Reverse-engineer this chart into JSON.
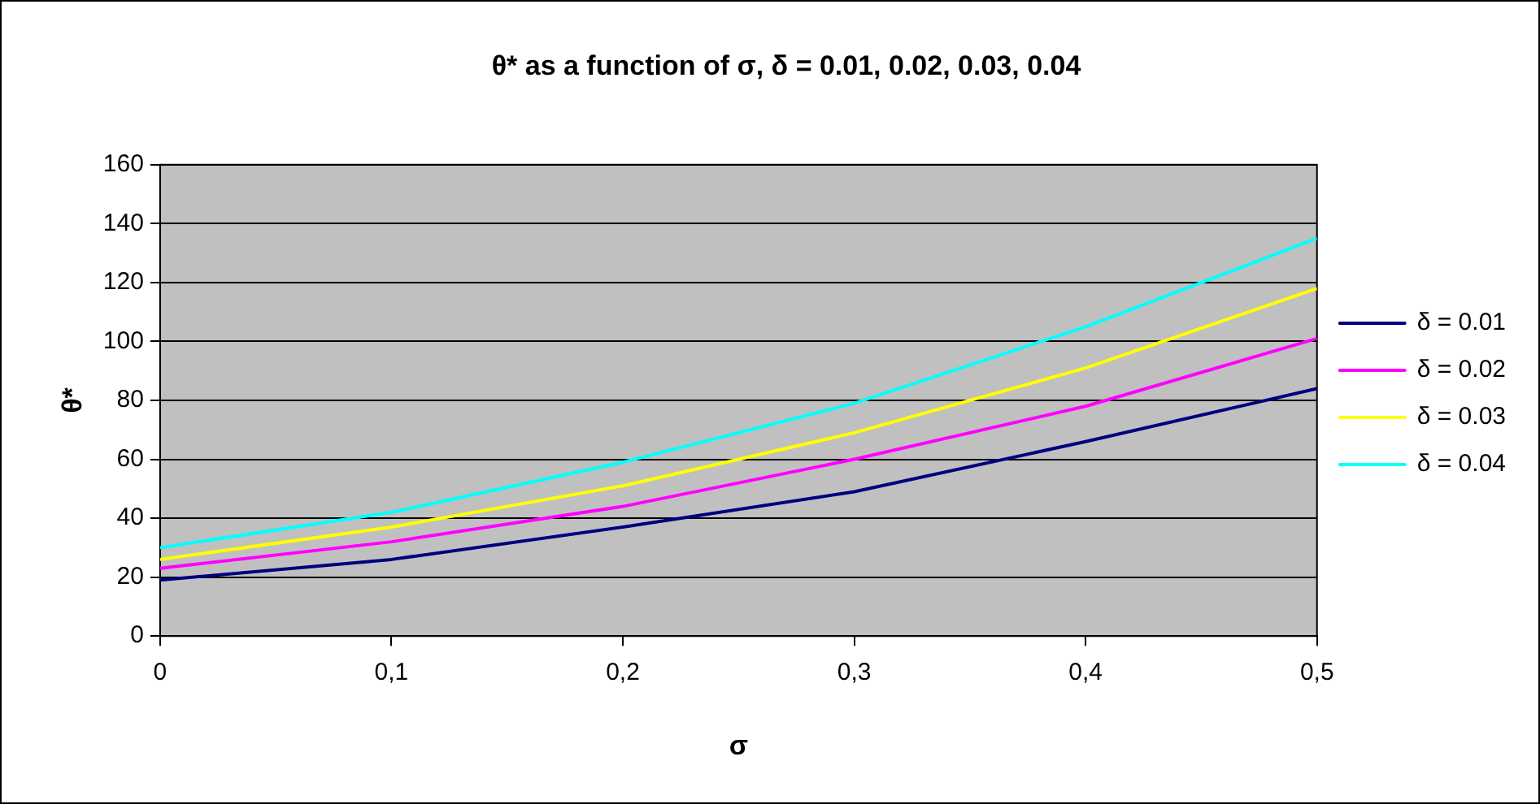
{
  "chart_data": {
    "type": "line",
    "title": "θ* as a function of σ, δ = 0.01, 0.02, 0.03, 0.04",
    "xlabel": "σ",
    "ylabel": "θ*",
    "x": [
      0,
      0.1,
      0.2,
      0.3,
      0.4,
      0.5
    ],
    "xlim": [
      0,
      0.5
    ],
    "xticks": [
      0,
      {
        "value": 0.1,
        "label": "0,1"
      },
      {
        "value": 0.2,
        "label": "0,2"
      },
      {
        "value": 0.3,
        "label": "0,3"
      },
      {
        "value": 0.4,
        "label": "0,4"
      },
      {
        "value": 0.5,
        "label": "0,5"
      }
    ],
    "ylim": [
      0,
      160
    ],
    "yticks": [
      0,
      20,
      40,
      60,
      80,
      100,
      120,
      140,
      160
    ],
    "grid": "y",
    "legend": "right",
    "marker": "none",
    "line_style": "solid",
    "series": [
      {
        "name": "δ = 0.01",
        "color": "#000080",
        "values": [
          19,
          26,
          37,
          49,
          66,
          84
        ]
      },
      {
        "name": "δ = 0.02",
        "color": "#ff00ff",
        "values": [
          23,
          32,
          44,
          60,
          78,
          101
        ]
      },
      {
        "name": "δ = 0.03",
        "color": "#ffff00",
        "values": [
          26,
          37,
          51,
          69,
          91,
          118
        ]
      },
      {
        "name": "δ = 0.04",
        "color": "#00ffff",
        "values": [
          30,
          42,
          59,
          79,
          105,
          135
        ]
      }
    ]
  }
}
